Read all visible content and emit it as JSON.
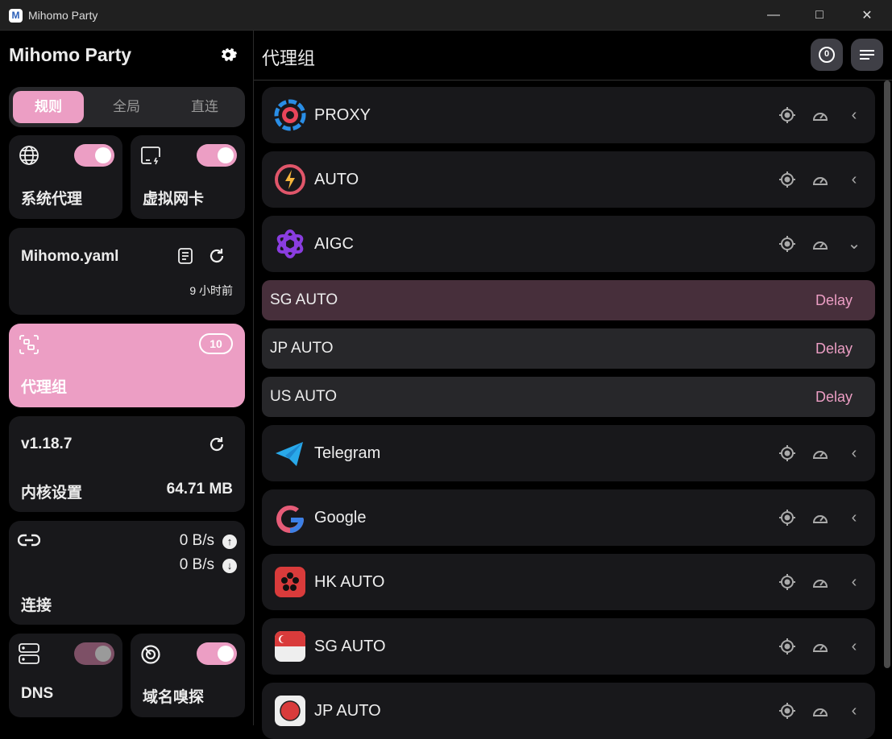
{
  "window": {
    "title": "Mihomo Party",
    "logo_letter": "M",
    "controls": [
      "minimize",
      "maximize",
      "close"
    ]
  },
  "sidebar": {
    "app_name": "Mihomo Party",
    "mode_tabs": [
      {
        "label": "规则",
        "active": true
      },
      {
        "label": "全局",
        "active": false
      },
      {
        "label": "直连",
        "active": false
      }
    ],
    "system_proxy": {
      "label": "系统代理",
      "enabled": true,
      "icon": "globe-icon"
    },
    "tun": {
      "label": "虚拟网卡",
      "enabled": true,
      "icon": "virtual-nic-icon"
    },
    "profile": {
      "name": "Mihomo.yaml",
      "updated": "9 小时前"
    },
    "proxy_groups": {
      "label": "代理组",
      "count": "10"
    },
    "core": {
      "version": "v1.18.7",
      "label": "内核设置",
      "memory": "64.71 MB"
    },
    "connections": {
      "label": "连接",
      "upload": "0 B/s",
      "download": "0 B/s"
    },
    "dns": {
      "label": "DNS",
      "enabled": false
    },
    "sniff": {
      "label": "域名嗅探",
      "enabled": true
    },
    "accent_color": "#ec9ec4"
  },
  "main": {
    "title": "代理组",
    "header_buttons": [
      "delay-test-button",
      "sort-button"
    ],
    "groups": [
      {
        "name": "PROXY",
        "icon": "proxy-icon",
        "expanded": false
      },
      {
        "name": "AUTO",
        "icon": "auto-icon",
        "expanded": false
      },
      {
        "name": "AIGC",
        "icon": "openai-icon",
        "expanded": true,
        "proxies": [
          {
            "name": "SG AUTO",
            "delay": "Delay",
            "selected": true
          },
          {
            "name": "JP AUTO",
            "delay": "Delay",
            "selected": false
          },
          {
            "name": "US AUTO",
            "delay": "Delay",
            "selected": false
          }
        ]
      },
      {
        "name": "Telegram",
        "icon": "telegram-icon",
        "expanded": false
      },
      {
        "name": "Google",
        "icon": "google-icon",
        "expanded": false
      },
      {
        "name": "HK AUTO",
        "icon": "hk-flag-icon",
        "expanded": false
      },
      {
        "name": "SG AUTO",
        "icon": "sg-flag-icon",
        "expanded": false
      },
      {
        "name": "JP AUTO",
        "icon": "jp-flag-icon",
        "expanded": false
      }
    ]
  }
}
